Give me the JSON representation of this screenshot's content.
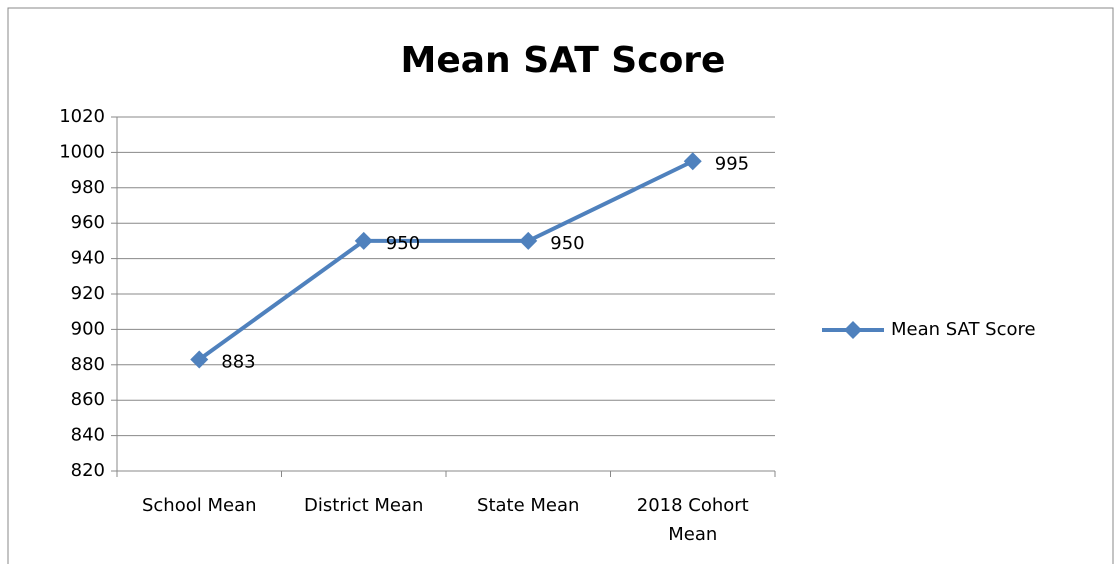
{
  "chart_data": {
    "type": "line",
    "title": "Mean SAT Score",
    "categories": [
      "School Mean",
      "District Mean",
      "State Mean",
      "2018 Cohort Mean"
    ],
    "series": [
      {
        "name": "Mean SAT Score",
        "color": "#4f81bd",
        "values": [
          883,
          950,
          950,
          995
        ]
      }
    ],
    "ylim": [
      820,
      1020
    ],
    "yticks": [
      820,
      840,
      860,
      880,
      900,
      920,
      940,
      960,
      980,
      1000,
      1020
    ],
    "grid": true,
    "legend": "right",
    "data_labels": true
  }
}
